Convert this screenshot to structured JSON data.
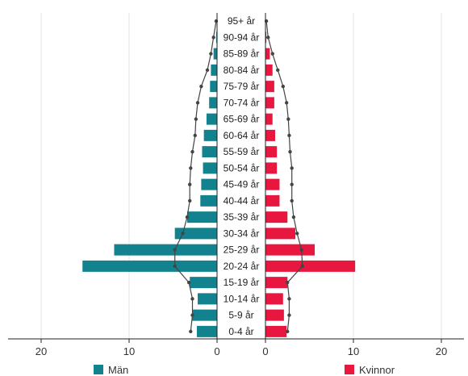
{
  "chart_data": {
    "type": "bar",
    "orientation": "horizontal",
    "subtype": "population-pyramid",
    "categories": [
      "95+ år",
      "90-94 år",
      "85-89 år",
      "80-84 år",
      "75-79 år",
      "70-74 år",
      "65-69 år",
      "60-64 år",
      "55-59 år",
      "50-54 år",
      "45-49 år",
      "40-44 år",
      "35-39 år",
      "30-34 år",
      "25-29 år",
      "20-24 år",
      "15-19 år",
      "10-14 år",
      "5-9 år",
      "0-4 år"
    ],
    "series": [
      {
        "name": "Män",
        "side": "left",
        "color": "#12838e",
        "values": [
          0,
          0.1,
          0.4,
          0.7,
          0.8,
          0.9,
          1.2,
          1.5,
          1.7,
          1.6,
          1.8,
          1.9,
          3.4,
          4.8,
          11.7,
          15.3,
          3.1,
          2.2,
          2.8,
          2.3
        ],
        "line_values": [
          0.1,
          0.4,
          0.7,
          1.1,
          1.8,
          2.2,
          2.4,
          2.5,
          2.8,
          3.0,
          3.1,
          3.1,
          3.4,
          3.9,
          4.8,
          4.8,
          3.2,
          2.8,
          2.8,
          3.0
        ]
      },
      {
        "name": "Kvinnor",
        "side": "right",
        "color": "#e8173f",
        "values": [
          0,
          0.1,
          0.5,
          0.8,
          1.0,
          1.0,
          0.8,
          1.1,
          1.3,
          1.3,
          1.6,
          1.6,
          2.5,
          3.4,
          5.6,
          10.2,
          2.5,
          2.0,
          2.1,
          2.4
        ],
        "line_values": [
          0.1,
          0.3,
          0.8,
          1.4,
          2.0,
          2.4,
          2.6,
          2.7,
          2.8,
          3.0,
          3.0,
          3.0,
          3.2,
          3.6,
          4.1,
          4.2,
          2.5,
          2.7,
          2.7,
          2.5
        ]
      }
    ],
    "xticks_left": [
      "20",
      "10",
      "0"
    ],
    "xticks_right": [
      "0",
      "10",
      "20"
    ],
    "xlim": [
      0,
      20
    ],
    "grid": true,
    "line_color": "#444444",
    "legend_position": "bottom"
  }
}
